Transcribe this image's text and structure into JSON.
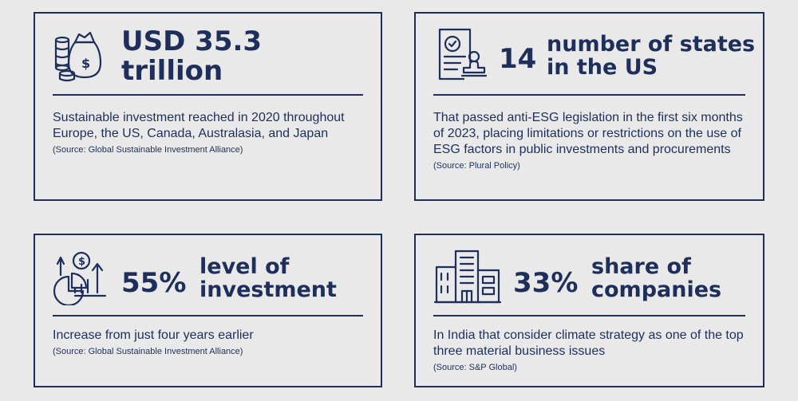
{
  "cards": [
    {
      "headline_line1": "USD 35.3",
      "headline_line2": "trillion",
      "description": "Sustainable investment reached in 2020 throughout Europe, the US, Canada, Australasia, and Japan",
      "source": "(Source: Global Sustainable Investment Alliance)",
      "icon": "money-bag-coins-icon"
    },
    {
      "number": "14",
      "label_line1": "number of states",
      "label_line2": "in the US",
      "description": "That passed anti-ESG legislation in the first six months of 2023, placing limitations or restrictions on the use of ESG factors in public investments and procurements",
      "source": "(Source: Plural Policy)",
      "icon": "document-stamp-icon"
    },
    {
      "number": "55%",
      "label_line1": "level of",
      "label_line2": "investment",
      "description": "Increase from just four years earlier",
      "source": "(Source: Global Sustainable Investment Alliance)",
      "icon": "growth-chart-icon"
    },
    {
      "number": "33%",
      "label_line1": "share of",
      "label_line2": "companies",
      "description": "In India that consider climate strategy as one of the top three material business issues",
      "source": "(Source: S&P Global)",
      "icon": "office-building-icon"
    }
  ],
  "colors": {
    "navy": "#1d2f5a",
    "background": "#e9e9ea"
  }
}
